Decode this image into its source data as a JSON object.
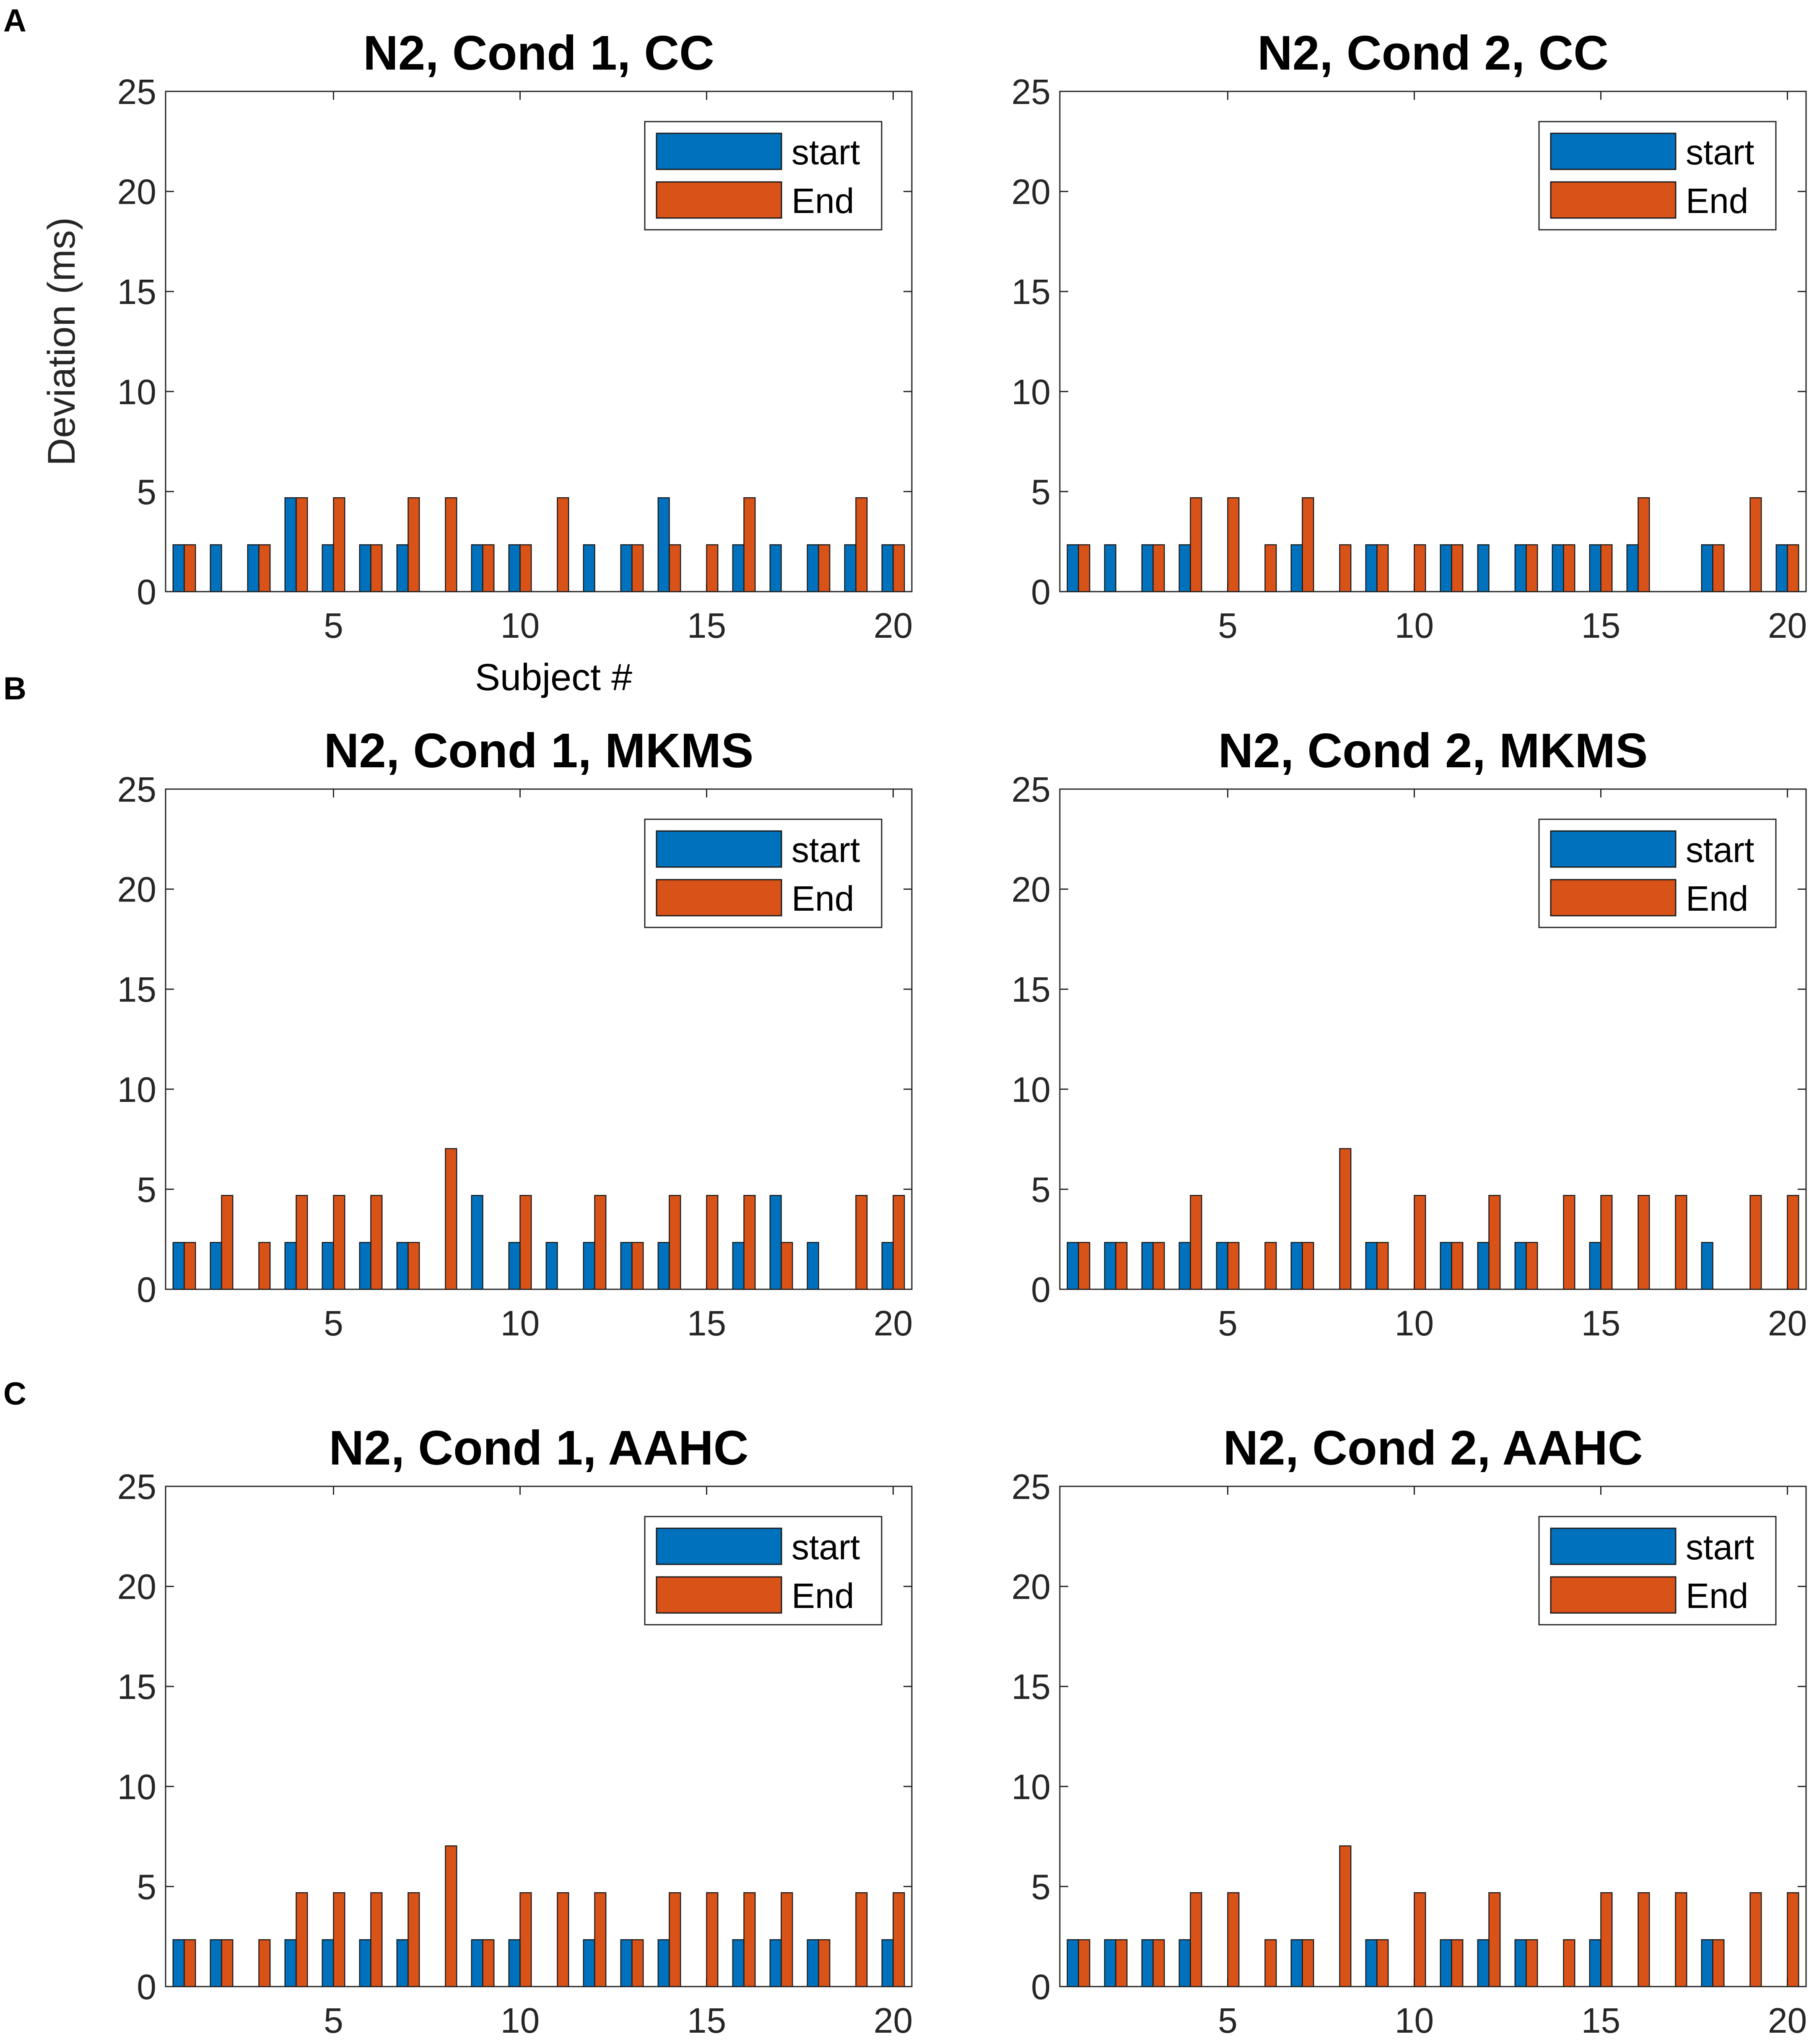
{
  "chart_data": [
    {
      "type": "bar",
      "panel_label": "A",
      "title": "N2, Cond 1, CC",
      "xlabel": "Subject #",
      "ylabel": "Deviation (ms)",
      "ylim": [
        0,
        25
      ],
      "yticks": [
        0,
        5,
        10,
        15,
        20,
        25
      ],
      "xticks": [
        5,
        10,
        15,
        20
      ],
      "legend": [
        "start",
        "End"
      ],
      "legend_position": "top-right",
      "categories": [
        1,
        2,
        3,
        4,
        5,
        6,
        7,
        8,
        9,
        10,
        11,
        12,
        13,
        14,
        15,
        16,
        17,
        18,
        19,
        20
      ],
      "series": [
        {
          "name": "start",
          "values": [
            2.34,
            2.34,
            2.34,
            4.69,
            2.34,
            2.34,
            2.34,
            0,
            2.34,
            2.34,
            0,
            2.34,
            2.34,
            4.69,
            0,
            2.34,
            2.34,
            2.34,
            2.34,
            2.34
          ]
        },
        {
          "name": "End",
          "values": [
            2.34,
            0,
            2.34,
            4.69,
            4.69,
            2.34,
            4.69,
            4.69,
            2.34,
            2.34,
            4.69,
            0,
            2.34,
            2.34,
            2.34,
            4.69,
            0,
            2.34,
            4.69,
            2.34
          ]
        }
      ]
    },
    {
      "type": "bar",
      "panel_label": "",
      "title": "N2, Cond 2, CC",
      "xlabel": "",
      "ylabel": "",
      "ylim": [
        0,
        25
      ],
      "yticks": [
        0,
        5,
        10,
        15,
        20,
        25
      ],
      "xticks": [
        5,
        10,
        15,
        20
      ],
      "legend": [
        "start",
        "End"
      ],
      "legend_position": "top-right",
      "categories": [
        1,
        2,
        3,
        4,
        5,
        6,
        7,
        8,
        9,
        10,
        11,
        12,
        13,
        14,
        15,
        16,
        17,
        18,
        19,
        20
      ],
      "series": [
        {
          "name": "start",
          "values": [
            2.34,
            2.34,
            2.34,
            2.34,
            0,
            0,
            2.34,
            0,
            2.34,
            0,
            2.34,
            2.34,
            2.34,
            2.34,
            2.34,
            2.34,
            0,
            2.34,
            0,
            2.34
          ]
        },
        {
          "name": "End",
          "values": [
            2.34,
            0,
            2.34,
            4.69,
            4.69,
            2.34,
            4.69,
            2.34,
            2.34,
            2.34,
            2.34,
            0,
            2.34,
            2.34,
            2.34,
            4.69,
            0,
            2.34,
            4.69,
            2.34
          ]
        }
      ]
    },
    {
      "type": "bar",
      "panel_label": "B",
      "title": "N2, Cond 1, MKMS",
      "xlabel": "",
      "ylabel": "",
      "ylim": [
        0,
        25
      ],
      "yticks": [
        0,
        5,
        10,
        15,
        20,
        25
      ],
      "xticks": [
        5,
        10,
        15,
        20
      ],
      "legend": [
        "start",
        "End"
      ],
      "legend_position": "top-right",
      "categories": [
        1,
        2,
        3,
        4,
        5,
        6,
        7,
        8,
        9,
        10,
        11,
        12,
        13,
        14,
        15,
        16,
        17,
        18,
        19,
        20
      ],
      "series": [
        {
          "name": "start",
          "values": [
            2.34,
            2.34,
            0,
            2.34,
            2.34,
            2.34,
            2.34,
            0,
            4.69,
            2.34,
            2.34,
            2.34,
            2.34,
            2.34,
            0,
            2.34,
            4.69,
            2.34,
            0,
            2.34
          ]
        },
        {
          "name": "End",
          "values": [
            2.34,
            4.69,
            2.34,
            4.69,
            4.69,
            4.69,
            2.34,
            7.03,
            0,
            4.69,
            0,
            4.69,
            2.34,
            4.69,
            4.69,
            4.69,
            2.34,
            0,
            4.69,
            4.69
          ]
        }
      ]
    },
    {
      "type": "bar",
      "panel_label": "",
      "title": "N2, Cond 2, MKMS",
      "xlabel": "",
      "ylabel": "",
      "ylim": [
        0,
        25
      ],
      "yticks": [
        0,
        5,
        10,
        15,
        20,
        25
      ],
      "xticks": [
        5,
        10,
        15,
        20
      ],
      "legend": [
        "start",
        "End"
      ],
      "legend_position": "top-right",
      "categories": [
        1,
        2,
        3,
        4,
        5,
        6,
        7,
        8,
        9,
        10,
        11,
        12,
        13,
        14,
        15,
        16,
        17,
        18,
        19,
        20
      ],
      "series": [
        {
          "name": "start",
          "values": [
            2.34,
            2.34,
            2.34,
            2.34,
            2.34,
            0,
            2.34,
            0,
            2.34,
            0,
            2.34,
            2.34,
            2.34,
            0,
            2.34,
            0,
            0,
            2.34,
            0,
            0
          ]
        },
        {
          "name": "End",
          "values": [
            2.34,
            2.34,
            2.34,
            4.69,
            2.34,
            2.34,
            2.34,
            7.03,
            2.34,
            4.69,
            2.34,
            4.69,
            2.34,
            4.69,
            4.69,
            4.69,
            4.69,
            0,
            4.69,
            4.69
          ]
        }
      ]
    },
    {
      "type": "bar",
      "panel_label": "C",
      "title": "N2, Cond 1, AAHC",
      "xlabel": "",
      "ylabel": "",
      "ylim": [
        0,
        25
      ],
      "yticks": [
        0,
        5,
        10,
        15,
        20,
        25
      ],
      "xticks": [
        5,
        10,
        15,
        20
      ],
      "legend": [
        "start",
        "End"
      ],
      "legend_position": "top-right",
      "categories": [
        1,
        2,
        3,
        4,
        5,
        6,
        7,
        8,
        9,
        10,
        11,
        12,
        13,
        14,
        15,
        16,
        17,
        18,
        19,
        20
      ],
      "series": [
        {
          "name": "start",
          "values": [
            2.34,
            2.34,
            0,
            2.34,
            2.34,
            2.34,
            2.34,
            0,
            2.34,
            2.34,
            0,
            2.34,
            2.34,
            2.34,
            0,
            2.34,
            2.34,
            2.34,
            0,
            2.34
          ]
        },
        {
          "name": "End",
          "values": [
            2.34,
            2.34,
            2.34,
            4.69,
            4.69,
            4.69,
            4.69,
            7.03,
            2.34,
            4.69,
            4.69,
            4.69,
            2.34,
            4.69,
            4.69,
            4.69,
            4.69,
            2.34,
            4.69,
            4.69
          ]
        }
      ]
    },
    {
      "type": "bar",
      "panel_label": "",
      "title": "N2, Cond 2, AAHC",
      "xlabel": "",
      "ylabel": "",
      "ylim": [
        0,
        25
      ],
      "yticks": [
        0,
        5,
        10,
        15,
        20,
        25
      ],
      "xticks": [
        5,
        10,
        15,
        20
      ],
      "legend": [
        "start",
        "End"
      ],
      "legend_position": "top-right",
      "categories": [
        1,
        2,
        3,
        4,
        5,
        6,
        7,
        8,
        9,
        10,
        11,
        12,
        13,
        14,
        15,
        16,
        17,
        18,
        19,
        20
      ],
      "series": [
        {
          "name": "start",
          "values": [
            2.34,
            2.34,
            2.34,
            2.34,
            0,
            0,
            2.34,
            0,
            2.34,
            0,
            2.34,
            2.34,
            2.34,
            0,
            2.34,
            0,
            0,
            2.34,
            0,
            0
          ]
        },
        {
          "name": "End",
          "values": [
            2.34,
            2.34,
            2.34,
            4.69,
            4.69,
            2.34,
            2.34,
            7.03,
            2.34,
            4.69,
            2.34,
            4.69,
            2.34,
            2.34,
            4.69,
            4.69,
            4.69,
            2.34,
            4.69,
            4.69
          ]
        }
      ]
    }
  ],
  "colors": {
    "start": "#0072BD",
    "end": "#D95319",
    "axis": "#262626",
    "background": "#ffffff"
  }
}
